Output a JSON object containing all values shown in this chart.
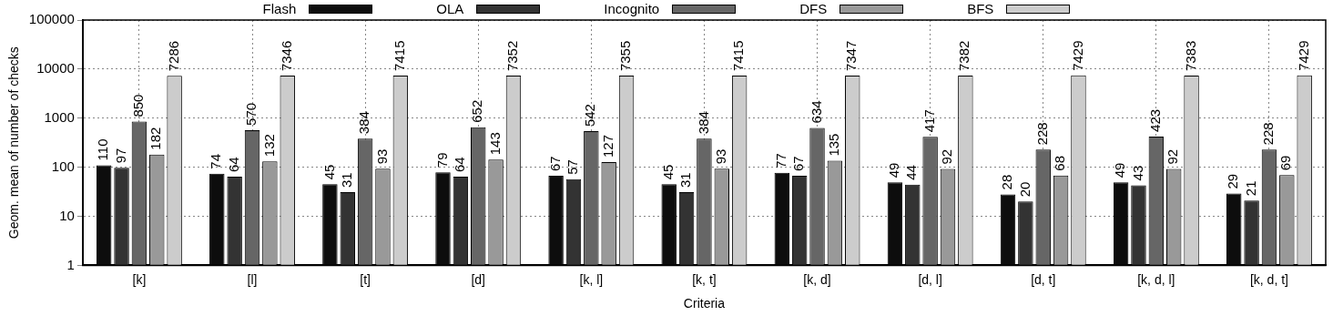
{
  "chart_data": {
    "type": "bar",
    "xlabel": "Criteria",
    "ylabel": "Geom. mean of number of checks",
    "categories": [
      "[k]",
      "[l]",
      "[t]",
      "[d]",
      "[k, l]",
      "[k, t]",
      "[k, d]",
      "[d, l]",
      "[d, t]",
      "[k, d, l]",
      "[k, d, t]"
    ],
    "series": [
      {
        "name": "Flash",
        "color": "#0d0d0d",
        "values": [
          110,
          74,
          45,
          79,
          67,
          45,
          77,
          49,
          28,
          49,
          29
        ]
      },
      {
        "name": "OLA",
        "color": "#333333",
        "values": [
          97,
          64,
          31,
          64,
          57,
          31,
          67,
          44,
          20,
          43,
          21
        ]
      },
      {
        "name": "Incognito",
        "color": "#666666",
        "values": [
          850,
          570,
          384,
          652,
          542,
          384,
          634,
          417,
          228,
          423,
          228
        ]
      },
      {
        "name": "DFS",
        "color": "#999999",
        "values": [
          182,
          132,
          93,
          143,
          127,
          93,
          135,
          92,
          68,
          92,
          69
        ]
      },
      {
        "name": "BFS",
        "color": "#cccccc",
        "values": [
          7286,
          7346,
          7415,
          7352,
          7355,
          7415,
          7347,
          7382,
          7429,
          7383,
          7429
        ]
      }
    ],
    "log": "y",
    "ylim": [
      1,
      100000
    ],
    "yticks": [
      1,
      10,
      100,
      1000,
      10000,
      100000
    ],
    "grid": true,
    "legend": "top",
    "data_labels": true
  }
}
